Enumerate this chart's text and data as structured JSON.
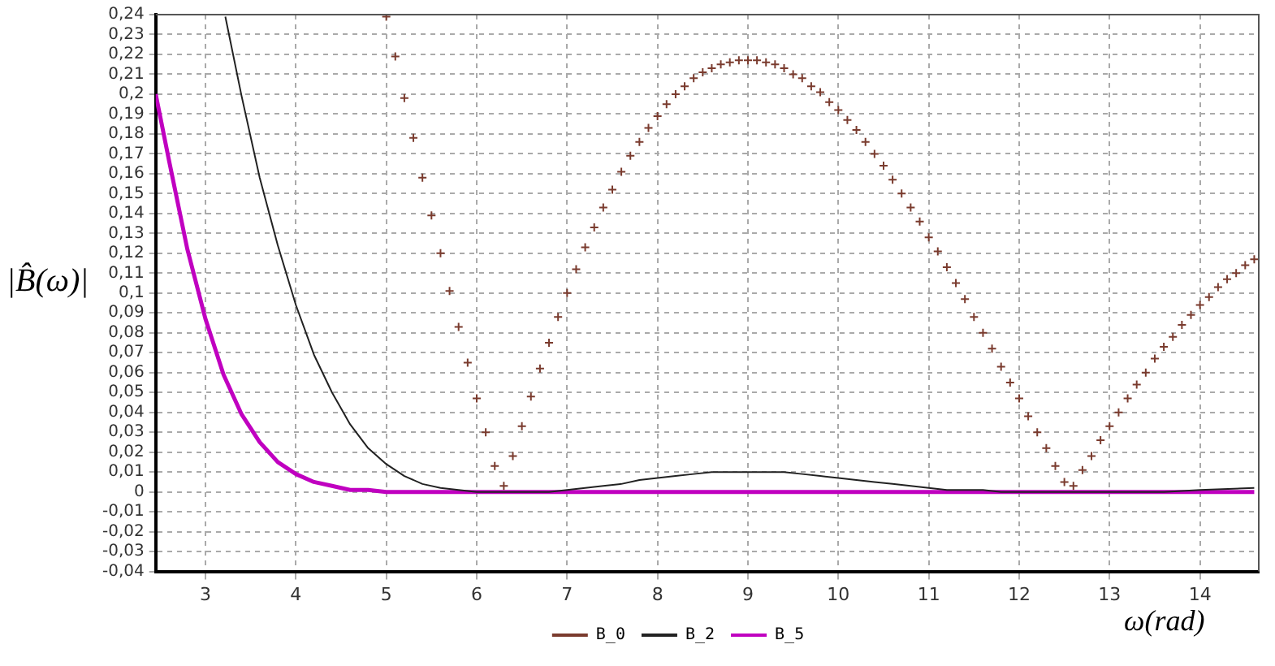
{
  "chart_data": {
    "type": "line",
    "xlabel": "ω(rad)",
    "ylabel": "|B̂(ω)|",
    "xlim": [
      2.45,
      14.65
    ],
    "xticks": [
      3,
      4,
      5,
      6,
      7,
      8,
      9,
      10,
      11,
      12,
      13,
      14
    ],
    "ylim": [
      -0.04,
      0.24
    ],
    "yticks": [
      {
        "value": -0.04,
        "label": "-0,04"
      },
      {
        "value": -0.03,
        "label": "-0,03"
      },
      {
        "value": -0.02,
        "label": "-0,02"
      },
      {
        "value": -0.01,
        "label": "-0,01"
      },
      0,
      {
        "value": 0.01,
        "label": "0,01"
      },
      {
        "value": 0.02,
        "label": "0,02"
      },
      {
        "value": 0.03,
        "label": "0,03"
      },
      {
        "value": 0.04,
        "label": "0,04"
      },
      {
        "value": 0.05,
        "label": "0,05"
      },
      {
        "value": 0.06,
        "label": "0,06"
      },
      {
        "value": 0.07,
        "label": "0,07"
      },
      {
        "value": 0.08,
        "label": "0,08"
      },
      {
        "value": 0.09,
        "label": "0,09"
      },
      {
        "value": 0.1,
        "label": "0,1"
      },
      {
        "value": 0.11,
        "label": "0,11"
      },
      {
        "value": 0.12,
        "label": "0,12"
      },
      {
        "value": 0.13,
        "label": "0,13"
      },
      {
        "value": 0.14,
        "label": "0,14"
      },
      {
        "value": 0.15,
        "label": "0,15"
      },
      {
        "value": 0.16,
        "label": "0,16"
      },
      {
        "value": 0.17,
        "label": "0,17"
      },
      {
        "value": 0.18,
        "label": "0,18"
      },
      {
        "value": 0.19,
        "label": "0,19"
      },
      {
        "value": 0.2,
        "label": "0,2"
      },
      {
        "value": 0.21,
        "label": "0,21"
      },
      {
        "value": 0.22,
        "label": "0,22"
      },
      {
        "value": 0.23,
        "label": "0,23"
      },
      {
        "value": 0.24,
        "label": "0,24"
      }
    ],
    "grid": true,
    "legend": "bottom",
    "series": [
      {
        "name": "B_0",
        "type": "scatter",
        "marker": "cross",
        "color": "#7a3b2e",
        "x": [
          5.0,
          5.1,
          5.2,
          5.3,
          5.4,
          5.5,
          5.6,
          5.7,
          5.8,
          5.9,
          6.0,
          6.1,
          6.2,
          6.3,
          6.4,
          6.5,
          6.6,
          6.7,
          6.8,
          6.9,
          7.0,
          7.1,
          7.2,
          7.3,
          7.4,
          7.5,
          7.6,
          7.7,
          7.8,
          7.9,
          8.0,
          8.1,
          8.2,
          8.3,
          8.4,
          8.5,
          8.6,
          8.7,
          8.8,
          8.9,
          9.0,
          9.1,
          9.2,
          9.3,
          9.4,
          9.5,
          9.6,
          9.7,
          9.8,
          9.9,
          10.0,
          10.1,
          10.2,
          10.3,
          10.4,
          10.5,
          10.6,
          10.7,
          10.8,
          10.9,
          11.0,
          11.1,
          11.2,
          11.3,
          11.4,
          11.5,
          11.6,
          11.7,
          11.8,
          11.9,
          12.0,
          12.1,
          12.2,
          12.3,
          12.4,
          12.5,
          12.6,
          12.7,
          12.8,
          12.9,
          13.0,
          13.1,
          13.2,
          13.3,
          13.4,
          13.5,
          13.6,
          13.7,
          13.8,
          13.9,
          14.0,
          14.1,
          14.2,
          14.3,
          14.4,
          14.5,
          14.6
        ],
        "values": [
          0.239,
          0.219,
          0.198,
          0.178,
          0.158,
          0.139,
          0.12,
          0.101,
          0.083,
          0.065,
          0.047,
          0.03,
          0.013,
          0.003,
          0.018,
          0.033,
          0.048,
          0.062,
          0.075,
          0.088,
          0.1,
          0.112,
          0.123,
          0.133,
          0.143,
          0.152,
          0.161,
          0.169,
          0.176,
          0.183,
          0.189,
          0.195,
          0.2,
          0.204,
          0.208,
          0.211,
          0.213,
          0.215,
          0.216,
          0.217,
          0.217,
          0.217,
          0.216,
          0.215,
          0.213,
          0.21,
          0.208,
          0.204,
          0.201,
          0.196,
          0.192,
          0.187,
          0.182,
          0.176,
          0.17,
          0.164,
          0.157,
          0.15,
          0.143,
          0.136,
          0.128,
          0.121,
          0.113,
          0.105,
          0.097,
          0.088,
          0.08,
          0.072,
          0.063,
          0.055,
          0.047,
          0.038,
          0.03,
          0.022,
          0.013,
          0.005,
          0.003,
          0.011,
          0.018,
          0.026,
          0.033,
          0.04,
          0.047,
          0.054,
          0.06,
          0.067,
          0.073,
          0.078,
          0.084,
          0.089,
          0.094,
          0.098,
          0.103,
          0.107,
          0.11,
          0.114,
          0.117
        ]
      },
      {
        "name": "B_2",
        "type": "line",
        "marker": "none",
        "line_style": "solid",
        "color": "#222222",
        "x": [
          3.22,
          3.4,
          3.6,
          3.8,
          4.0,
          4.2,
          4.4,
          4.6,
          4.8,
          5.0,
          5.2,
          5.4,
          5.6,
          5.8,
          6.0,
          6.2,
          6.4,
          6.6,
          6.8,
          7.0,
          7.2,
          7.4,
          7.6,
          7.8,
          8.0,
          8.2,
          8.4,
          8.6,
          8.8,
          9.0,
          9.2,
          9.4,
          9.6,
          9.8,
          10.0,
          10.2,
          10.4,
          10.6,
          10.8,
          11.0,
          11.2,
          11.4,
          11.6,
          11.8,
          12.0,
          12.4,
          12.8,
          13.2,
          13.6,
          14.0,
          14.6
        ],
        "values": [
          0.239,
          0.199,
          0.158,
          0.124,
          0.094,
          0.069,
          0.05,
          0.034,
          0.022,
          0.014,
          0.008,
          0.004,
          0.002,
          0.001,
          0,
          0,
          0,
          0,
          0,
          0.001,
          0.002,
          0.003,
          0.004,
          0.006,
          0.007,
          0.008,
          0.009,
          0.01,
          0.01,
          0.01,
          0.01,
          0.01,
          0.009,
          0.008,
          0.007,
          0.006,
          0.005,
          0.004,
          0.003,
          0.002,
          0.001,
          0.001,
          0.001,
          0,
          0,
          0,
          0,
          0,
          0,
          0.001,
          0.002
        ]
      },
      {
        "name": "B_5",
        "type": "line",
        "marker": "none",
        "line_style": "solid",
        "color": "#c000c0",
        "x": [
          2.45,
          2.6,
          2.8,
          3.0,
          3.2,
          3.4,
          3.6,
          3.8,
          4.0,
          4.2,
          4.4,
          4.6,
          4.8,
          5.0,
          5.4,
          14.6
        ],
        "values": [
          0.2,
          0.166,
          0.122,
          0.087,
          0.059,
          0.039,
          0.025,
          0.015,
          0.009,
          0.005,
          0.003,
          0.001,
          0.001,
          0,
          0,
          0
        ]
      }
    ]
  }
}
